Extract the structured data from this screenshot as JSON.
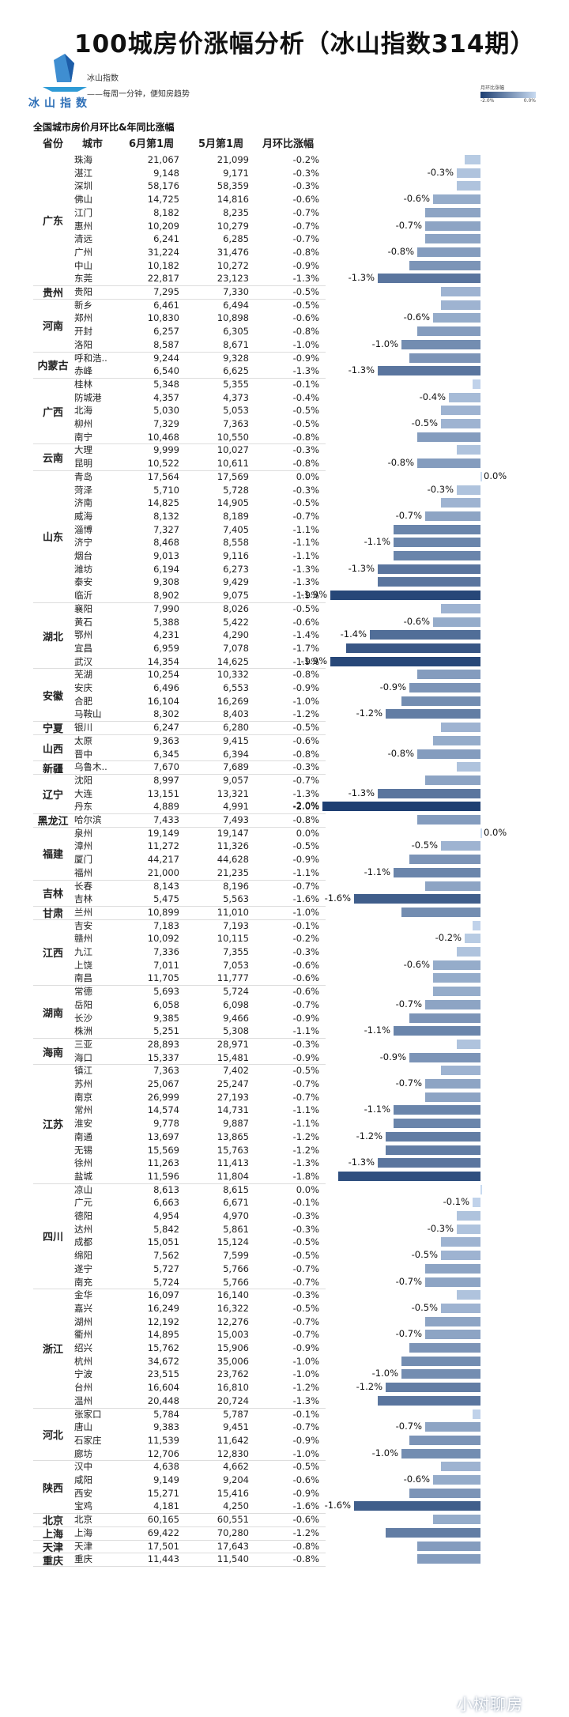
{
  "title": "100城房价涨幅分析（冰山指数314期）",
  "brand": {
    "logo_text": "冰山指数",
    "name": "冰山指数",
    "slogan": "——每周一分钟，便知房趋势"
  },
  "legend": {
    "title": "月环比涨幅",
    "min_label": "-2.0%",
    "max_label": "0.0%"
  },
  "subtitle": "全国城市房价月环比&年同比涨幅",
  "headers": {
    "province": "省份",
    "city": "城市",
    "jun": "6月第1周",
    "may": "5月第1周",
    "mom": "月环比涨幅"
  },
  "watermark": "小树聊房",
  "chart_data": {
    "type": "bar",
    "orientation": "horizontal",
    "xlim": [
      -2.0,
      0.0
    ],
    "groups": [
      {
        "province": "广东",
        "rows": [
          [
            "珠海",
            "21,067",
            "21,099",
            "-0.2%"
          ],
          [
            "湛江",
            "9,148",
            "9,171",
            "-0.3%"
          ],
          [
            "深圳",
            "58,176",
            "58,359",
            "-0.3%"
          ],
          [
            "佛山",
            "14,725",
            "14,816",
            "-0.6%"
          ],
          [
            "江门",
            "8,182",
            "8,235",
            "-0.7%"
          ],
          [
            "惠州",
            "10,209",
            "10,279",
            "-0.7%"
          ],
          [
            "清远",
            "6,241",
            "6,285",
            "-0.7%"
          ],
          [
            "广州",
            "31,224",
            "31,476",
            "-0.8%"
          ],
          [
            "中山",
            "10,182",
            "10,272",
            "-0.9%"
          ],
          [
            "东莞",
            "22,817",
            "23,123",
            "-1.3%"
          ]
        ]
      },
      {
        "province": "贵州",
        "rows": [
          [
            "贵阳",
            "7,295",
            "7,330",
            "-0.5%"
          ]
        ]
      },
      {
        "province": "河南",
        "rows": [
          [
            "新乡",
            "6,461",
            "6,494",
            "-0.5%"
          ],
          [
            "郑州",
            "10,830",
            "10,898",
            "-0.6%"
          ],
          [
            "开封",
            "6,257",
            "6,305",
            "-0.8%"
          ],
          [
            "洛阳",
            "8,587",
            "8,671",
            "-1.0%"
          ]
        ]
      },
      {
        "province": "内蒙古",
        "rows": [
          [
            "呼和浩..",
            "9,244",
            "9,328",
            "-0.9%"
          ],
          [
            "赤峰",
            "6,540",
            "6,625",
            "-1.3%"
          ]
        ]
      },
      {
        "province": "广西",
        "rows": [
          [
            "桂林",
            "5,348",
            "5,355",
            "-0.1%"
          ],
          [
            "防城港",
            "4,357",
            "4,373",
            "-0.4%"
          ],
          [
            "北海",
            "5,030",
            "5,053",
            "-0.5%"
          ],
          [
            "柳州",
            "7,329",
            "7,363",
            "-0.5%"
          ],
          [
            "南宁",
            "10,468",
            "10,550",
            "-0.8%"
          ]
        ]
      },
      {
        "province": "云南",
        "rows": [
          [
            "大理",
            "9,999",
            "10,027",
            "-0.3%"
          ],
          [
            "昆明",
            "10,522",
            "10,611",
            "-0.8%"
          ]
        ]
      },
      {
        "province": "山东",
        "rows": [
          [
            "青岛",
            "17,564",
            "17,569",
            "0.0%"
          ],
          [
            "菏泽",
            "5,710",
            "5,728",
            "-0.3%"
          ],
          [
            "济南",
            "14,825",
            "14,905",
            "-0.5%"
          ],
          [
            "威海",
            "8,132",
            "8,189",
            "-0.7%"
          ],
          [
            "淄博",
            "7,327",
            "7,405",
            "-1.1%"
          ],
          [
            "济宁",
            "8,468",
            "8,558",
            "-1.1%"
          ],
          [
            "烟台",
            "9,013",
            "9,116",
            "-1.1%"
          ],
          [
            "潍坊",
            "6,194",
            "6,273",
            "-1.3%"
          ],
          [
            "泰安",
            "9,308",
            "9,429",
            "-1.3%"
          ],
          [
            "临沂",
            "8,902",
            "9,075",
            "-1.9%"
          ]
        ]
      },
      {
        "province": "湖北",
        "rows": [
          [
            "襄阳",
            "7,990",
            "8,026",
            "-0.5%"
          ],
          [
            "黄石",
            "5,388",
            "5,422",
            "-0.6%"
          ],
          [
            "鄂州",
            "4,231",
            "4,290",
            "-1.4%"
          ],
          [
            "宜昌",
            "6,959",
            "7,078",
            "-1.7%"
          ],
          [
            "武汉",
            "14,354",
            "14,625",
            "-1.9%"
          ]
        ]
      },
      {
        "province": "安徽",
        "rows": [
          [
            "芜湖",
            "10,254",
            "10,332",
            "-0.8%"
          ],
          [
            "安庆",
            "6,496",
            "6,553",
            "-0.9%"
          ],
          [
            "合肥",
            "16,104",
            "16,269",
            "-1.0%"
          ],
          [
            "马鞍山",
            "8,302",
            "8,403",
            "-1.2%"
          ]
        ]
      },
      {
        "province": "宁夏",
        "rows": [
          [
            "银川",
            "6,247",
            "6,280",
            "-0.5%"
          ]
        ]
      },
      {
        "province": "山西",
        "rows": [
          [
            "太原",
            "9,363",
            "9,415",
            "-0.6%"
          ],
          [
            "晋中",
            "6,345",
            "6,394",
            "-0.8%"
          ]
        ]
      },
      {
        "province": "新疆",
        "rows": [
          [
            "乌鲁木..",
            "7,670",
            "7,689",
            "-0.3%"
          ]
        ]
      },
      {
        "province": "辽宁",
        "rows": [
          [
            "沈阳",
            "8,997",
            "9,057",
            "-0.7%"
          ],
          [
            "大连",
            "13,151",
            "13,321",
            "-1.3%"
          ],
          [
            "丹东",
            "4,889",
            "4,991",
            "-2.0%"
          ]
        ]
      },
      {
        "province": "黑龙江",
        "rows": [
          [
            "哈尔滨",
            "7,433",
            "7,493",
            "-0.8%"
          ]
        ]
      },
      {
        "province": "福建",
        "rows": [
          [
            "泉州",
            "19,149",
            "19,147",
            "0.0%"
          ],
          [
            "漳州",
            "11,272",
            "11,326",
            "-0.5%"
          ],
          [
            "厦门",
            "44,217",
            "44,628",
            "-0.9%"
          ],
          [
            "福州",
            "21,000",
            "21,235",
            "-1.1%"
          ]
        ]
      },
      {
        "province": "吉林",
        "rows": [
          [
            "长春",
            "8,143",
            "8,196",
            "-0.7%"
          ],
          [
            "吉林",
            "5,475",
            "5,563",
            "-1.6%"
          ]
        ]
      },
      {
        "province": "甘肃",
        "rows": [
          [
            "兰州",
            "10,899",
            "11,010",
            "-1.0%"
          ]
        ]
      },
      {
        "province": "江西",
        "rows": [
          [
            "吉安",
            "7,183",
            "7,193",
            "-0.1%"
          ],
          [
            "赣州",
            "10,092",
            "10,115",
            "-0.2%"
          ],
          [
            "九江",
            "7,336",
            "7,355",
            "-0.3%"
          ],
          [
            "上饶",
            "7,011",
            "7,053",
            "-0.6%"
          ],
          [
            "南昌",
            "11,705",
            "11,777",
            "-0.6%"
          ]
        ]
      },
      {
        "province": "湖南",
        "rows": [
          [
            "常德",
            "5,693",
            "5,724",
            "-0.6%"
          ],
          [
            "岳阳",
            "6,058",
            "6,098",
            "-0.7%"
          ],
          [
            "长沙",
            "9,385",
            "9,466",
            "-0.9%"
          ],
          [
            "株洲",
            "5,251",
            "5,308",
            "-1.1%"
          ]
        ]
      },
      {
        "province": "海南",
        "rows": [
          [
            "三亚",
            "28,893",
            "28,971",
            "-0.3%"
          ],
          [
            "海口",
            "15,337",
            "15,481",
            "-0.9%"
          ]
        ]
      },
      {
        "province": "江苏",
        "rows": [
          [
            "镇江",
            "7,363",
            "7,402",
            "-0.5%"
          ],
          [
            "苏州",
            "25,067",
            "25,247",
            "-0.7%"
          ],
          [
            "南京",
            "26,999",
            "27,193",
            "-0.7%"
          ],
          [
            "常州",
            "14,574",
            "14,731",
            "-1.1%"
          ],
          [
            "淮安",
            "9,778",
            "9,887",
            "-1.1%"
          ],
          [
            "南通",
            "13,697",
            "13,865",
            "-1.2%"
          ],
          [
            "无锡",
            "15,569",
            "15,763",
            "-1.2%"
          ],
          [
            "徐州",
            "11,263",
            "11,413",
            "-1.3%"
          ],
          [
            "盐城",
            "11,596",
            "11,804",
            "-1.8%"
          ]
        ]
      },
      {
        "province": "四川",
        "rows": [
          [
            "凉山",
            "8,613",
            "8,615",
            "0.0%"
          ],
          [
            "广元",
            "6,663",
            "6,671",
            "-0.1%"
          ],
          [
            "德阳",
            "4,954",
            "4,970",
            "-0.3%"
          ],
          [
            "达州",
            "5,842",
            "5,861",
            "-0.3%"
          ],
          [
            "成都",
            "15,051",
            "15,124",
            "-0.5%"
          ],
          [
            "绵阳",
            "7,562",
            "7,599",
            "-0.5%"
          ],
          [
            "遂宁",
            "5,727",
            "5,766",
            "-0.7%"
          ],
          [
            "南充",
            "5,724",
            "5,766",
            "-0.7%"
          ]
        ]
      },
      {
        "province": "浙江",
        "rows": [
          [
            "金华",
            "16,097",
            "16,140",
            "-0.3%"
          ],
          [
            "嘉兴",
            "16,249",
            "16,322",
            "-0.5%"
          ],
          [
            "湖州",
            "12,192",
            "12,276",
            "-0.7%"
          ],
          [
            "衢州",
            "14,895",
            "15,003",
            "-0.7%"
          ],
          [
            "绍兴",
            "15,762",
            "15,906",
            "-0.9%"
          ],
          [
            "杭州",
            "34,672",
            "35,006",
            "-1.0%"
          ],
          [
            "宁波",
            "23,515",
            "23,762",
            "-1.0%"
          ],
          [
            "台州",
            "16,604",
            "16,810",
            "-1.2%"
          ],
          [
            "温州",
            "20,448",
            "20,724",
            "-1.3%"
          ]
        ]
      },
      {
        "province": "河北",
        "rows": [
          [
            "张家口",
            "5,784",
            "5,787",
            "-0.1%"
          ],
          [
            "唐山",
            "9,383",
            "9,451",
            "-0.7%"
          ],
          [
            "石家庄",
            "11,539",
            "11,642",
            "-0.9%"
          ],
          [
            "廊坊",
            "12,706",
            "12,830",
            "-1.0%"
          ]
        ]
      },
      {
        "province": "陕西",
        "rows": [
          [
            "汉中",
            "4,638",
            "4,662",
            "-0.5%"
          ],
          [
            "咸阳",
            "9,149",
            "9,204",
            "-0.6%"
          ],
          [
            "西安",
            "15,271",
            "15,416",
            "-0.9%"
          ],
          [
            "宝鸡",
            "4,181",
            "4,250",
            "-1.6%"
          ]
        ]
      },
      {
        "province": "北京",
        "rows": [
          [
            "北京",
            "60,165",
            "60,551",
            "-0.6%"
          ]
        ]
      },
      {
        "province": "上海",
        "rows": [
          [
            "上海",
            "69,422",
            "70,280",
            "-1.2%"
          ]
        ]
      },
      {
        "province": "天津",
        "rows": [
          [
            "天津",
            "17,501",
            "17,643",
            "-0.8%"
          ]
        ]
      },
      {
        "province": "重庆",
        "rows": [
          [
            "重庆",
            "11,443",
            "11,540",
            "-0.8%"
          ]
        ]
      }
    ],
    "data_labels": [
      "珠海_skip",
      "湛江",
      "佛山",
      "惠州",
      "广州",
      "东莞",
      "郑州",
      "洛阳",
      "赤峰",
      "防城港",
      "柳州",
      "昆明",
      "青岛",
      "菏泽",
      "威海",
      "济宁",
      "潍坊",
      "临沂",
      "黄石",
      "鄂州",
      "武汉",
      "安庆",
      "马鞍山",
      "晋中",
      "大连",
      "丹东",
      "泉州",
      "漳州",
      "福州",
      "吉林",
      "赣州",
      "上饶",
      "岳阳",
      "株洲",
      "海口",
      "苏州",
      "常州",
      "南通",
      "徐州",
      "广元",
      "达州",
      "绵阳",
      "南充",
      "嘉兴",
      "衢州",
      "宁波",
      "台州",
      "唐山",
      "廊坊",
      "咸阳",
      "宝鸡"
    ]
  }
}
